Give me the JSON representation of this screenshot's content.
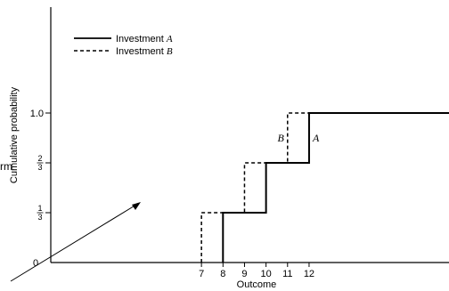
{
  "chart_data": {
    "type": "line",
    "step": true,
    "xlabel": "Outcome",
    "ylabel": "Cumulative probability",
    "x_ticks": [
      7,
      8,
      9,
      10,
      11,
      12
    ],
    "y_ticks": [
      {
        "value": 0.3333,
        "label": "1/3"
      },
      {
        "value": 0.6667,
        "label": "2/3"
      },
      {
        "value": 1.0,
        "label": "1.0"
      }
    ],
    "xlim": [
      0,
      18.5
    ],
    "ylim": [
      0,
      1.75
    ],
    "origin_label": "0",
    "legend_position": "top-left",
    "series": [
      {
        "name": "Investment A",
        "legend_prefix": "Investment ",
        "legend_italic": "A",
        "style": "solid",
        "curve_label": "A",
        "x": [
          8,
          10,
          12
        ],
        "y": [
          0.3333,
          0.6667,
          1.0
        ]
      },
      {
        "name": "Investment B",
        "legend_prefix": "Investment ",
        "legend_italic": "B",
        "style": "dashed",
        "curve_label": "B",
        "x": [
          7,
          9,
          11
        ],
        "y": [
          0.3333,
          0.6667,
          1.0
        ]
      }
    ]
  },
  "stray_text": "rm"
}
